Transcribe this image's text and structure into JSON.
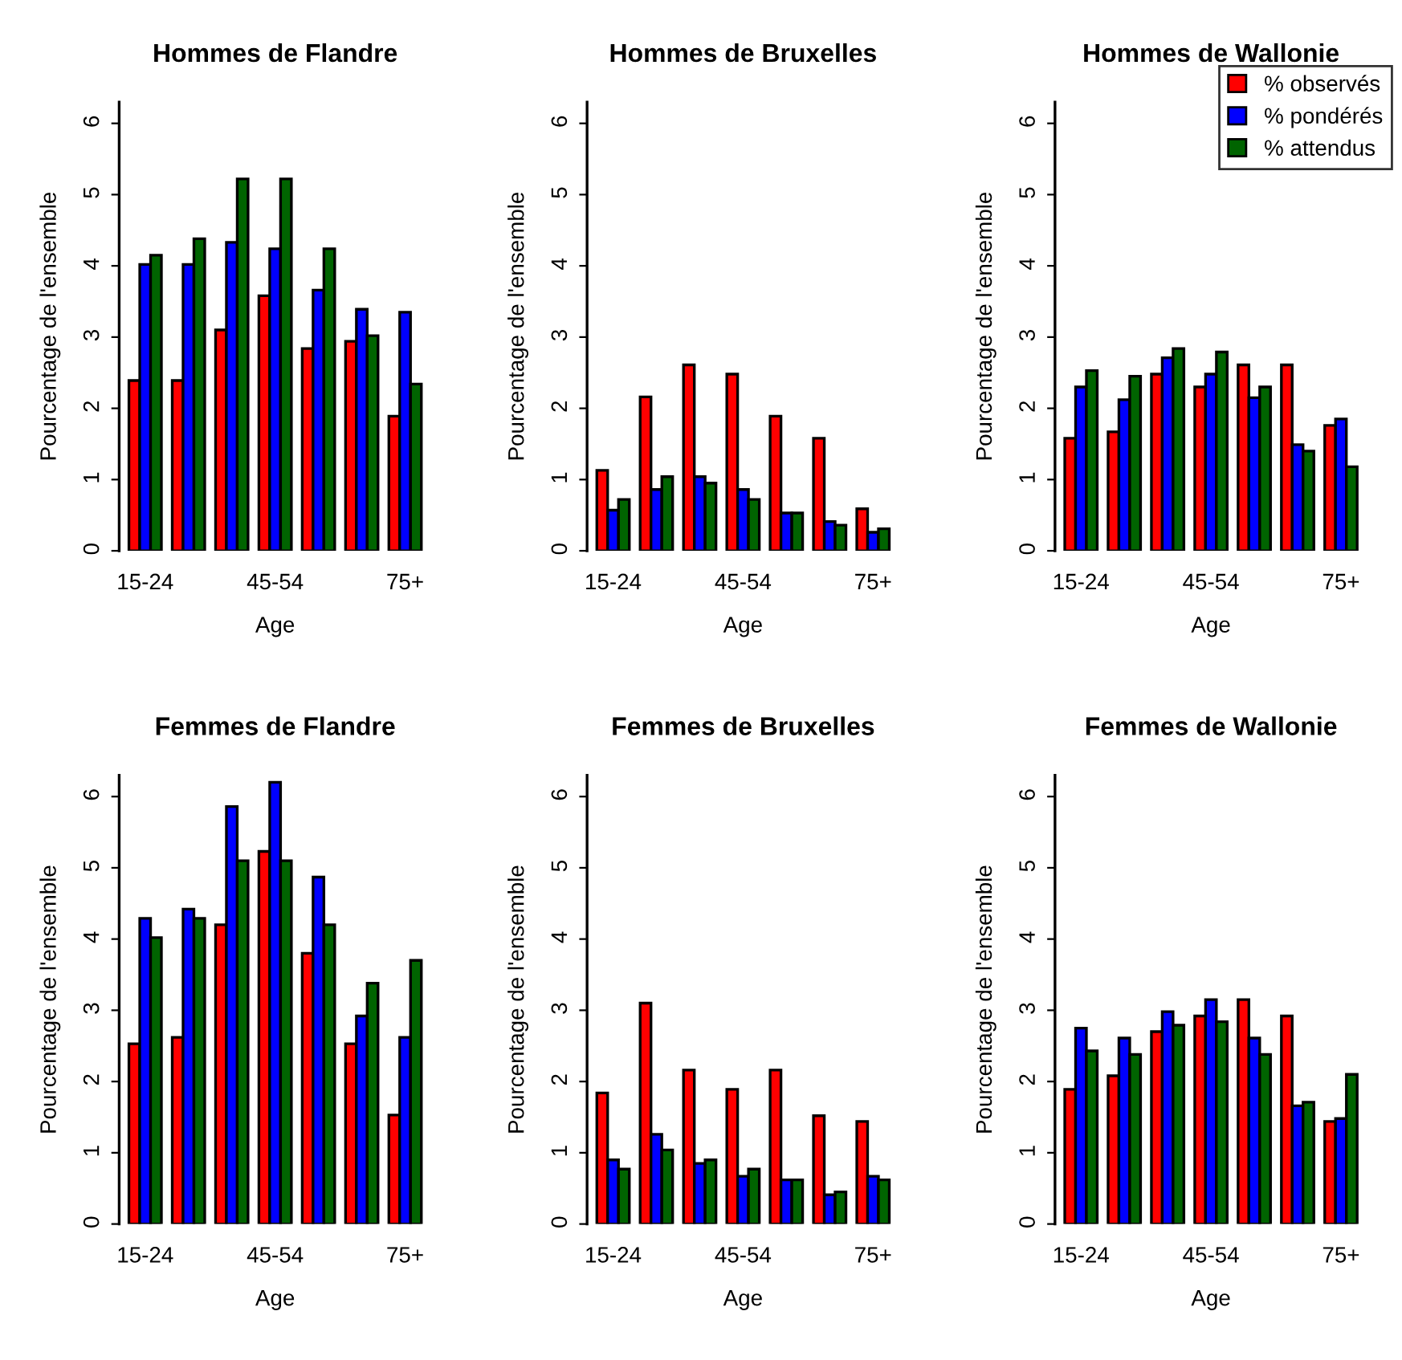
{
  "chart_data": [
    {
      "type": "bar",
      "title": "Hommes de Flandre",
      "xlabel": "Age",
      "ylabel": "Pourcentage de l'ensemble",
      "categories": [
        "15-24",
        null,
        null,
        "45-54",
        null,
        null,
        "75+"
      ],
      "ylim": [
        0,
        6.3
      ],
      "yticks": [
        0,
        1,
        2,
        3,
        4,
        5,
        6
      ],
      "series": [
        {
          "color": "#ff0000",
          "values": [
            2.39,
            2.39,
            3.1,
            3.58,
            2.84,
            2.94,
            1.89
          ]
        },
        {
          "color": "#0000ff",
          "values": [
            4.02,
            4.02,
            4.33,
            4.24,
            3.66,
            3.39,
            3.35
          ]
        },
        {
          "color": "#006400",
          "values": [
            4.15,
            4.38,
            5.22,
            5.22,
            4.24,
            3.02,
            2.34
          ]
        }
      ]
    },
    {
      "type": "bar",
      "title": "Hommes de Bruxelles",
      "xlabel": "Age",
      "ylabel": "Pourcentage de l'ensemble",
      "categories": [
        "15-24",
        null,
        null,
        "45-54",
        null,
        null,
        "75+"
      ],
      "ylim": [
        0,
        6.3
      ],
      "yticks": [
        0,
        1,
        2,
        3,
        4,
        5,
        6
      ],
      "series": [
        {
          "color": "#ff0000",
          "values": [
            1.13,
            2.16,
            2.61,
            2.48,
            1.89,
            1.58,
            0.59
          ]
        },
        {
          "color": "#0000ff",
          "values": [
            0.57,
            0.86,
            1.04,
            0.86,
            0.53,
            0.41,
            0.26
          ]
        },
        {
          "color": "#006400",
          "values": [
            0.72,
            1.04,
            0.95,
            0.72,
            0.53,
            0.36,
            0.31
          ]
        }
      ]
    },
    {
      "type": "bar",
      "title": "Hommes de Wallonie",
      "xlabel": "Age",
      "ylabel": "Pourcentage de l'ensemble",
      "categories": [
        "15-24",
        null,
        null,
        "45-54",
        null,
        null,
        "75+"
      ],
      "ylim": [
        0,
        6.3
      ],
      "yticks": [
        0,
        1,
        2,
        3,
        4,
        5,
        6
      ],
      "legend": "top right",
      "series": [
        {
          "name": "% observés",
          "color": "#ff0000",
          "values": [
            1.58,
            1.67,
            2.48,
            2.3,
            2.61,
            2.61,
            1.76
          ]
        },
        {
          "name": "% pondérés",
          "color": "#0000ff",
          "values": [
            2.3,
            2.12,
            2.71,
            2.48,
            2.15,
            1.49,
            1.85
          ]
        },
        {
          "name": "% attendus",
          "color": "#006400",
          "values": [
            2.53,
            2.45,
            2.84,
            2.79,
            2.3,
            1.4,
            1.18
          ]
        }
      ]
    },
    {
      "type": "bar",
      "title": "Femmes de Flandre",
      "xlabel": "Age",
      "ylabel": "Pourcentage de l'ensemble",
      "categories": [
        "15-24",
        null,
        null,
        "45-54",
        null,
        null,
        "75+"
      ],
      "ylim": [
        0,
        6.3
      ],
      "yticks": [
        0,
        1,
        2,
        3,
        4,
        5,
        6
      ],
      "series": [
        {
          "color": "#ff0000",
          "values": [
            2.53,
            2.62,
            4.2,
            5.23,
            3.8,
            2.53,
            1.53
          ]
        },
        {
          "color": "#0000ff",
          "values": [
            4.29,
            4.42,
            5.86,
            6.2,
            4.87,
            2.92,
            2.62
          ]
        },
        {
          "color": "#006400",
          "values": [
            4.02,
            4.29,
            5.1,
            5.1,
            4.2,
            3.38,
            3.7
          ]
        }
      ]
    },
    {
      "type": "bar",
      "title": "Femmes de Bruxelles",
      "xlabel": "Age",
      "ylabel": "Pourcentage de l'ensemble",
      "categories": [
        "15-24",
        null,
        null,
        "45-54",
        null,
        null,
        "75+"
      ],
      "ylim": [
        0,
        6.3
      ],
      "yticks": [
        0,
        1,
        2,
        3,
        4,
        5,
        6
      ],
      "series": [
        {
          "color": "#ff0000",
          "values": [
            1.84,
            3.1,
            2.16,
            1.89,
            2.16,
            1.52,
            1.44
          ]
        },
        {
          "color": "#0000ff",
          "values": [
            0.9,
            1.26,
            0.85,
            0.67,
            0.62,
            0.41,
            0.67
          ]
        },
        {
          "color": "#006400",
          "values": [
            0.77,
            1.04,
            0.9,
            0.77,
            0.62,
            0.45,
            0.62
          ]
        }
      ]
    },
    {
      "type": "bar",
      "title": "Femmes de Wallonie",
      "xlabel": "Age",
      "ylabel": "Pourcentage de l'ensemble",
      "categories": [
        "15-24",
        null,
        null,
        "45-54",
        null,
        null,
        "75+"
      ],
      "ylim": [
        0,
        6.3
      ],
      "yticks": [
        0,
        1,
        2,
        3,
        4,
        5,
        6
      ],
      "series": [
        {
          "color": "#ff0000",
          "values": [
            1.89,
            2.08,
            2.7,
            2.92,
            3.15,
            2.92,
            1.44
          ]
        },
        {
          "color": "#0000ff",
          "values": [
            2.75,
            2.61,
            2.98,
            3.15,
            2.61,
            1.66,
            1.48
          ]
        },
        {
          "color": "#006400",
          "values": [
            2.43,
            2.38,
            2.79,
            2.84,
            2.38,
            1.71,
            2.1
          ]
        }
      ]
    }
  ]
}
